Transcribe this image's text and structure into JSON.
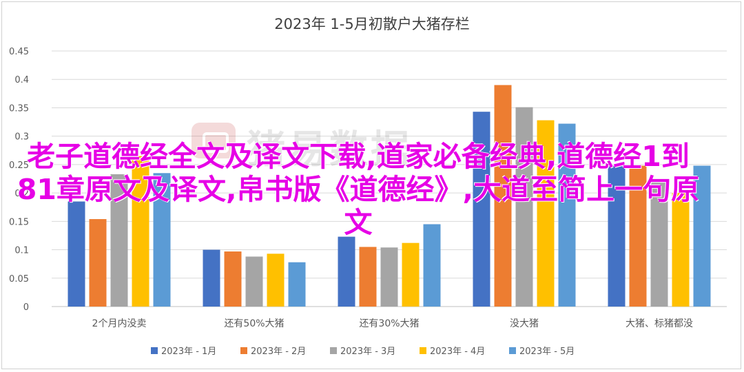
{
  "chart_data": {
    "type": "bar",
    "title": "2023年 1-5月初散户大猪存栏",
    "categories": [
      "2个月内没卖",
      "还有50%大猪",
      "还有30%大猪",
      "没大猪",
      "大猪、标猪都没"
    ],
    "series": [
      {
        "name": "2023年 - 1月",
        "color": "#4472C4",
        "values": [
          0.185,
          0.1,
          0.123,
          0.343,
          0.248
        ]
      },
      {
        "name": "2023年 - 2月",
        "color": "#ED7D31",
        "values": [
          0.154,
          0.097,
          0.105,
          0.39,
          0.248
        ]
      },
      {
        "name": "2023年 - 3月",
        "color": "#A5A5A5",
        "values": [
          0.233,
          0.088,
          0.104,
          0.351,
          0.222
        ]
      },
      {
        "name": "2023年 - 4月",
        "color": "#FFC000",
        "values": [
          0.265,
          0.093,
          0.112,
          0.328,
          0.2
        ]
      },
      {
        "name": "2023年 - 5月",
        "color": "#5B9BD5",
        "values": [
          0.235,
          0.078,
          0.145,
          0.322,
          0.248
        ]
      }
    ],
    "ylim": [
      0,
      0.45
    ],
    "yticks": [
      "0",
      "0.05",
      "0.1",
      "0.15",
      "0.2",
      "0.25",
      "0.3",
      "0.35",
      "0.4",
      "0.45"
    ],
    "grid": true,
    "legend_position": "bottom"
  },
  "overlay_text": "老子道德经全文及译文下载,道家必备经典,道德经1到81章原文及译文,帛书版《道德经》,大道至简上一句原文",
  "watermark_text": "猪易数据"
}
